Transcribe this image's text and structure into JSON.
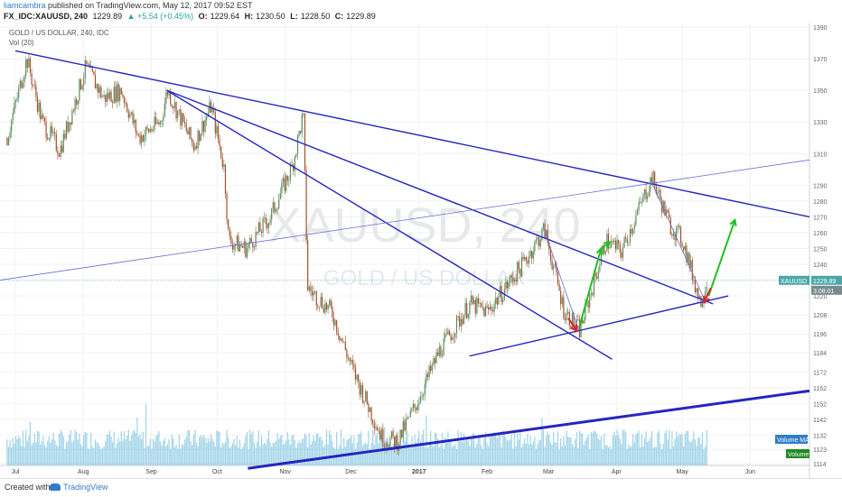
{
  "header": {
    "author": "liamcambra",
    "published": "published on TradingView.com, May 12, 2017 09:52 EST",
    "symbol": "FX_IDC:XAUUSD, 240",
    "last": "1229.89",
    "change": "▲ +5.54 (+0.45%)",
    "o_label": "O:",
    "o": "1229.64",
    "h_label": "H:",
    "h": "1230.50",
    "l_label": "L:",
    "l": "1228.50",
    "c_label": "C:",
    "c": "1229.89"
  },
  "legend": {
    "series": "GOLD / US DOLLAR, 240, IDC",
    "vol": "Vol (20)"
  },
  "watermark": {
    "symbol": "XAUUSD, 240",
    "name": "GOLD / US DOLLAR"
  },
  "tags": {
    "price": "XAUUSD",
    "price_value": "1229.89",
    "countdown": "3:08:01",
    "volume_ma": "Volume MA",
    "volume": "Volume"
  },
  "footer": {
    "created": "Created with",
    "brand": "TradingView"
  },
  "colors": {
    "trendline": "#2525c0",
    "thin_trendline": "#6a6ad8",
    "up_arrow": "#22c022",
    "down_arrow": "#e02020",
    "candle_up": "#5a8a5a",
    "candle_down": "#a0522d",
    "volume": "#7fc4e0",
    "price_tag": "#4aa8a8"
  },
  "chart_data": {
    "type": "candlestick",
    "x_ticks": [
      "Jul",
      "Aug",
      "Sep",
      "Oct",
      "Nov",
      "Dec",
      "2017",
      "Feb",
      "Mar",
      "Apr",
      "May",
      "Jun"
    ],
    "y_ticks": [
      1390,
      1370,
      1350,
      1330,
      1310,
      1290,
      1280,
      1270,
      1260,
      1250,
      1240,
      1230,
      1220,
      1208,
      1196,
      1184,
      1172,
      1162,
      1152,
      1142,
      1132,
      1123,
      1114
    ],
    "price_path": [
      [
        "2016-06-27",
        1320
      ],
      [
        "2016-07-06",
        1370
      ],
      [
        "2016-07-13",
        1330
      ],
      [
        "2016-07-21",
        1312
      ],
      [
        "2016-08-02",
        1365
      ],
      [
        "2016-08-10",
        1345
      ],
      [
        "2016-08-18",
        1350
      ],
      [
        "2016-08-26",
        1320
      ],
      [
        "2016-09-05",
        1330
      ],
      [
        "2016-09-08",
        1350
      ],
      [
        "2016-09-20",
        1315
      ],
      [
        "2016-09-28",
        1340
      ],
      [
        "2016-10-04",
        1300
      ],
      [
        "2016-10-06",
        1255
      ],
      [
        "2016-10-14",
        1250
      ],
      [
        "2016-10-25",
        1270
      ],
      [
        "2016-11-04",
        1302
      ],
      [
        "2016-11-09",
        1335
      ],
      [
        "2016-11-11",
        1225
      ],
      [
        "2016-11-22",
        1210
      ],
      [
        "2016-12-01",
        1175
      ],
      [
        "2016-12-15",
        1130
      ],
      [
        "2016-12-22",
        1128
      ],
      [
        "2016-12-30",
        1150
      ],
      [
        "2017-01-10",
        1185
      ],
      [
        "2017-01-24",
        1215
      ],
      [
        "2017-02-01",
        1210
      ],
      [
        "2017-02-17",
        1240
      ],
      [
        "2017-02-27",
        1262
      ],
      [
        "2017-03-08",
        1210
      ],
      [
        "2017-03-15",
        1198
      ],
      [
        "2017-03-27",
        1255
      ],
      [
        "2017-04-03",
        1248
      ],
      [
        "2017-04-11",
        1275
      ],
      [
        "2017-04-17",
        1295
      ],
      [
        "2017-04-25",
        1265
      ],
      [
        "2017-05-01",
        1255
      ],
      [
        "2017-05-09",
        1216
      ],
      [
        "2017-05-12",
        1229.89
      ]
    ],
    "trendlines": [
      {
        "from": [
          "2016-07-01",
          1375
        ],
        "to": [
          "2017-06-28",
          1270
        ],
        "weight": "medium"
      },
      {
        "from": [
          "2016-09-08",
          1350
        ],
        "to": [
          "2017-05-15",
          1215
        ],
        "weight": "medium"
      },
      {
        "from": [
          "2016-09-08",
          1350
        ],
        "to": [
          "2017-03-30",
          1180
        ],
        "weight": "medium"
      },
      {
        "from": [
          "2017-01-24",
          1182
        ],
        "to": [
          "2017-05-22",
          1220
        ],
        "weight": "medium"
      },
      {
        "from": [
          "2016-06-24",
          1230
        ],
        "to": [
          "2017-06-28",
          1306
        ],
        "weight": "thin"
      },
      {
        "from": [
          "2016-10-15",
          1111
        ],
        "to": [
          "2017-06-28",
          1160
        ],
        "weight": "thick"
      },
      {
        "from": [
          "2017-02-27",
          1262
        ],
        "to": [
          "2017-03-15",
          1198
        ],
        "weight": "thin"
      },
      {
        "from": [
          "2017-04-17",
          1292
        ],
        "to": [
          "2017-05-12",
          1215
        ],
        "weight": "thin"
      }
    ],
    "arrows": [
      {
        "color": "up",
        "from": [
          "2017-03-15",
          1200
        ],
        "to": [
          "2017-03-25",
          1250
        ]
      },
      {
        "color": "up",
        "from": [
          "2017-03-25",
          1250
        ],
        "to": [
          "2017-03-29",
          1254
        ]
      },
      {
        "color": "up",
        "from": [
          "2017-05-13",
          1220
        ],
        "to": [
          "2017-05-25",
          1268
        ]
      },
      {
        "color": "down",
        "from": [
          "2017-03-10",
          1206
        ],
        "to": [
          "2017-03-14",
          1198
        ]
      },
      {
        "color": "down",
        "from": [
          "2017-05-14",
          1225
        ],
        "to": [
          "2017-05-11",
          1216
        ]
      }
    ],
    "volume_shown": true
  }
}
